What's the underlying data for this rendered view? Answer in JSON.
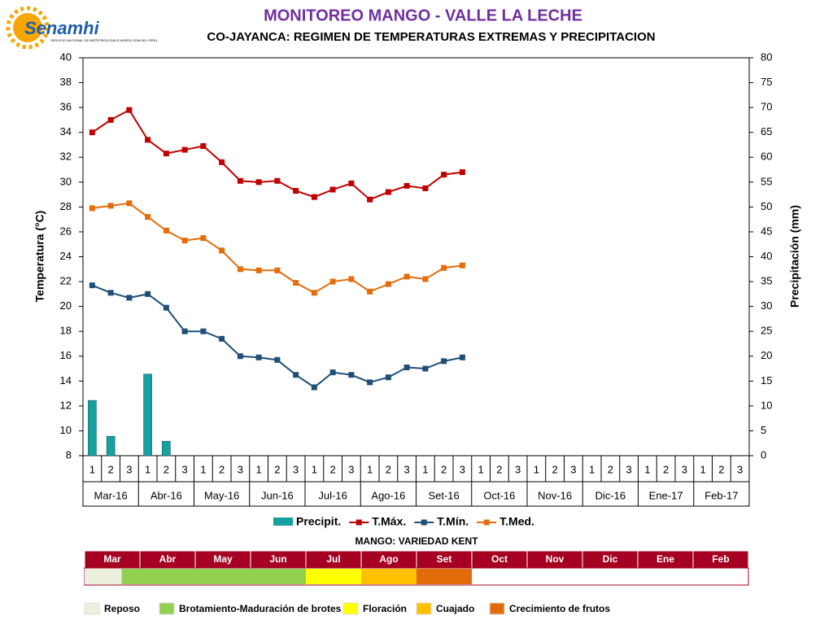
{
  "logo": {
    "name": "Senamhi",
    "subtitle": "SERVICIO NACIONAL DE METEOROLOGIA E HIDROLOGIA DEL PERU"
  },
  "chart_data": {
    "type": "line",
    "title": "MONITOREO MANGO - VALLE LA LECHE",
    "subtitle": "CO-JAYANCA: REGIMEN DE TEMPERATURAS EXTREMAS Y PRECIPITACION",
    "y_label": "Temperatura (°C)",
    "y2_label": "Precipitación (mm)",
    "categories": [
      "1",
      "2",
      "3",
      "1",
      "2",
      "3",
      "1",
      "2",
      "3",
      "1",
      "2",
      "3",
      "1",
      "2",
      "3",
      "1",
      "2",
      "3",
      "1",
      "2",
      "3",
      "1",
      "2",
      "3",
      "1",
      "2",
      "3",
      "1",
      "2",
      "3",
      "1",
      "2",
      "3",
      "1",
      "2",
      "3"
    ],
    "category_groups": [
      "Mar-16",
      "Abr-16",
      "May-16",
      "Jun-16",
      "Jul-16",
      "Ago-16",
      "Set-16",
      "Oct-16",
      "Nov-16",
      "Dic-16",
      "Ene-17",
      "Feb-17"
    ],
    "ylim": [
      8,
      40
    ],
    "yticks": [
      8,
      10,
      12,
      14,
      16,
      18,
      20,
      22,
      24,
      26,
      28,
      30,
      32,
      34,
      36,
      38,
      40
    ],
    "y2lim": [
      0,
      80
    ],
    "y2ticks": [
      0,
      5,
      10,
      15,
      20,
      25,
      30,
      35,
      40,
      45,
      50,
      55,
      60,
      65,
      70,
      75,
      80
    ],
    "series": [
      {
        "name": "Precipit.",
        "type": "bar",
        "axis": "y2",
        "color": "#17a0a0",
        "values": [
          11.1,
          3.9,
          0,
          16.4,
          2.9,
          0,
          0,
          0,
          0,
          0,
          0,
          0,
          0,
          0,
          0,
          0,
          0,
          0,
          0,
          0,
          0,
          null,
          null,
          null,
          null,
          null,
          null,
          null,
          null,
          null,
          null,
          null,
          null,
          null,
          null,
          null
        ]
      },
      {
        "name": "T.Máx.",
        "type": "line",
        "color": "#c00000",
        "values": [
          34.0,
          35.0,
          35.8,
          33.4,
          32.3,
          32.6,
          32.9,
          31.6,
          30.1,
          30.0,
          30.1,
          29.3,
          28.8,
          29.4,
          29.9,
          28.6,
          29.2,
          29.7,
          29.5,
          30.6,
          30.8,
          null,
          null,
          null,
          null,
          null,
          null,
          null,
          null,
          null,
          null,
          null,
          null,
          null,
          null,
          null
        ]
      },
      {
        "name": "T.Mín.",
        "type": "line",
        "color": "#1f4e79",
        "values": [
          21.7,
          21.1,
          20.7,
          21.0,
          19.9,
          18.0,
          18.0,
          17.4,
          16.0,
          15.9,
          15.7,
          14.5,
          13.5,
          14.7,
          14.5,
          13.9,
          14.3,
          15.1,
          15.0,
          15.6,
          15.9,
          null,
          null,
          null,
          null,
          null,
          null,
          null,
          null,
          null,
          null,
          null,
          null,
          null,
          null,
          null
        ]
      },
      {
        "name": "T.Med.",
        "type": "line",
        "color": "#e46c0a",
        "values": [
          27.9,
          28.1,
          28.3,
          27.2,
          26.1,
          25.3,
          25.5,
          24.5,
          23.0,
          22.9,
          22.9,
          21.9,
          21.1,
          22.0,
          22.2,
          21.2,
          21.8,
          22.4,
          22.2,
          23.1,
          23.3,
          null,
          null,
          null,
          null,
          null,
          null,
          null,
          null,
          null,
          null,
          null,
          null,
          null,
          null,
          null
        ]
      }
    ]
  },
  "phenology": {
    "title": "MANGO: VARIEDAD KENT",
    "months": [
      "Mar",
      "Abr",
      "May",
      "Jun",
      "Jul",
      "Ago",
      "Set",
      "Oct",
      "Nov",
      "Dic",
      "Ene",
      "Feb"
    ],
    "stages": [
      {
        "name": "Reposo",
        "color": "#ebf1de",
        "start": 0,
        "end": 0.67
      },
      {
        "name": "Brotamiento-Maduración de brotes",
        "color": "#92d050",
        "start": 0.67,
        "end": 4
      },
      {
        "name": "Floración",
        "color": "#ffff00",
        "start": 4,
        "end": 5
      },
      {
        "name": "Cuajado",
        "color": "#ffc000",
        "start": 5,
        "end": 6
      },
      {
        "name": "Crecimiento de frutos",
        "color": "#e26b0a",
        "start": 6,
        "end": 7
      }
    ]
  }
}
